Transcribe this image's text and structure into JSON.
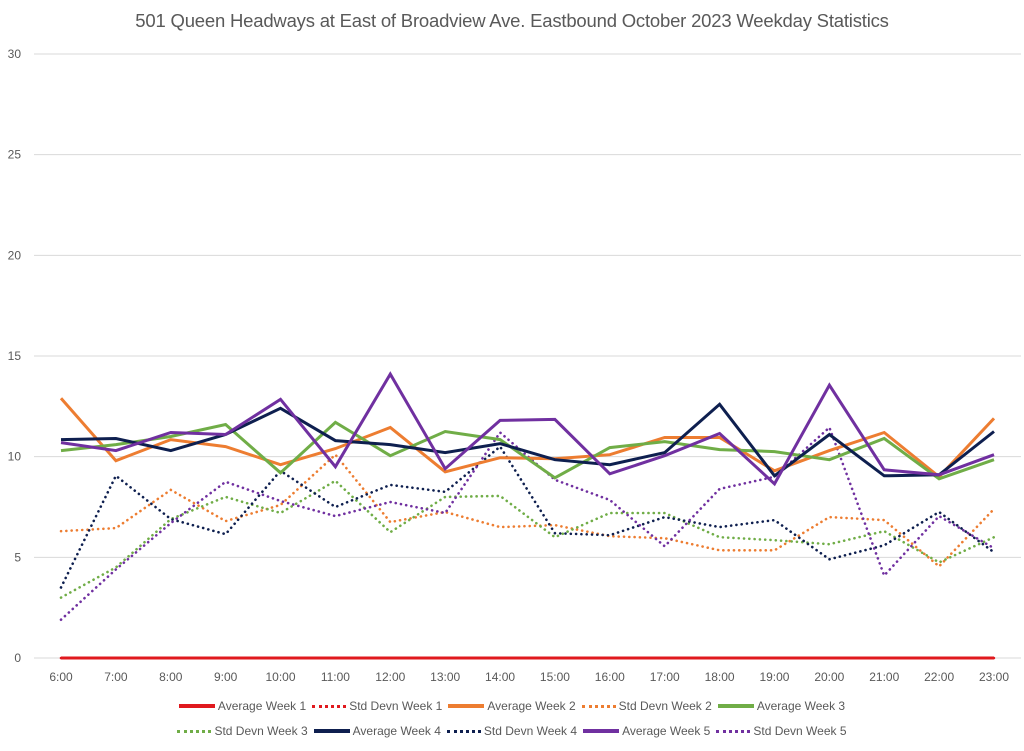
{
  "chart_data": {
    "type": "line",
    "title": "501 Queen Headways at East of Broadview Ave. Eastbound October 2023 Weekday Statistics",
    "xlabel": "",
    "ylabel": "",
    "ylim": [
      0,
      30
    ],
    "yticks": [
      0,
      5,
      10,
      15,
      20,
      25,
      30
    ],
    "grid": true,
    "legend_position": "bottom",
    "categories": [
      "6:00",
      "7:00",
      "8:00",
      "9:00",
      "10:00",
      "11:00",
      "12:00",
      "13:00",
      "14:00",
      "15:00",
      "16:00",
      "17:00",
      "18:00",
      "19:00",
      "20:00",
      "21:00",
      "22:00",
      "23:00"
    ],
    "series": [
      {
        "name": "Average Week 1",
        "style": "solid",
        "color": "#E0191E",
        "values": [
          0,
          0,
          0,
          0,
          0,
          0,
          0,
          0,
          0,
          0,
          0,
          0,
          0,
          0,
          0,
          0,
          0,
          0
        ]
      },
      {
        "name": "Std Devn Week 1",
        "style": "dotted",
        "color": "#E0191E",
        "values": [
          0,
          0,
          0,
          0,
          0,
          0,
          0,
          0,
          0,
          0,
          0,
          0,
          0,
          0,
          0,
          0,
          0,
          0
        ]
      },
      {
        "name": "Average Week 2",
        "style": "solid",
        "color": "#ED7D31",
        "values": [
          12.9,
          9.8,
          10.85,
          10.5,
          9.6,
          10.4,
          11.45,
          9.25,
          9.95,
          9.9,
          10.1,
          10.95,
          10.95,
          9.3,
          10.3,
          11.2,
          9.0,
          11.9
        ]
      },
      {
        "name": "Std Devn Week 2",
        "style": "dotted",
        "color": "#ED7D31",
        "values": [
          6.3,
          6.45,
          8.35,
          6.8,
          7.6,
          10.1,
          6.75,
          7.25,
          6.5,
          6.6,
          6.05,
          5.95,
          5.35,
          5.35,
          7.0,
          6.85,
          4.55,
          7.4
        ]
      },
      {
        "name": "Average Week 3",
        "style": "solid",
        "color": "#70AD47",
        "values": [
          10.3,
          10.6,
          11.0,
          11.6,
          9.2,
          11.7,
          10.05,
          11.25,
          10.85,
          8.95,
          10.45,
          10.75,
          10.35,
          10.25,
          9.85,
          10.9,
          8.9,
          9.85
        ]
      },
      {
        "name": "Std Devn Week 3",
        "style": "dotted",
        "color": "#70AD47",
        "values": [
          3.0,
          4.5,
          6.9,
          8.0,
          7.2,
          8.8,
          6.25,
          8.0,
          8.05,
          6.0,
          7.2,
          7.2,
          6.0,
          5.85,
          5.65,
          6.3,
          4.75,
          6.0
        ]
      },
      {
        "name": "Average Week 4",
        "style": "solid",
        "color": "#0E1F4F",
        "values": [
          10.85,
          10.9,
          10.3,
          11.1,
          12.4,
          10.8,
          10.6,
          10.2,
          10.65,
          9.85,
          9.6,
          10.2,
          12.6,
          9.05,
          11.1,
          9.05,
          9.1,
          11.25
        ]
      },
      {
        "name": "Std Devn Week 4",
        "style": "dotted",
        "color": "#0E1F4F",
        "values": [
          3.5,
          9.05,
          6.9,
          6.15,
          9.3,
          7.5,
          8.6,
          8.25,
          10.5,
          6.2,
          6.1,
          7.0,
          6.5,
          6.85,
          4.9,
          5.6,
          7.25,
          5.25
        ]
      },
      {
        "name": "Average Week 5",
        "style": "solid",
        "color": "#7030A0",
        "values": [
          10.7,
          10.3,
          11.2,
          11.1,
          12.85,
          9.5,
          14.1,
          9.4,
          11.8,
          11.85,
          9.15,
          10.05,
          11.15,
          8.65,
          13.55,
          9.35,
          9.1,
          10.1
        ]
      },
      {
        "name": "Std Devn Week 5",
        "style": "dotted",
        "color": "#7030A0",
        "values": [
          1.9,
          4.4,
          6.7,
          8.75,
          7.8,
          7.05,
          7.75,
          7.2,
          11.2,
          8.85,
          7.85,
          5.55,
          8.4,
          9.0,
          11.45,
          4.1,
          7.05,
          5.45
        ]
      }
    ]
  }
}
